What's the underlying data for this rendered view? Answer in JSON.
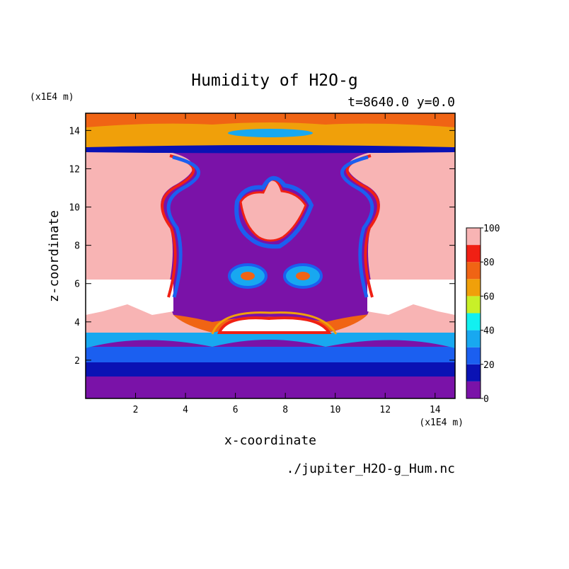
{
  "chart_data": {
    "type": "heatmap",
    "title": "Humidity of H2O-g",
    "subtitle": "t=8640.0 y=0.0",
    "xlabel": "x-coordinate",
    "ylabel": "z-coordinate",
    "x_unit": "(x1E4 m)",
    "y_unit": "(x1E4 m)",
    "xlim": [
      0,
      14.8
    ],
    "ylim": [
      0,
      14.9
    ],
    "x_ticks": [
      "2",
      "4",
      "6",
      "8",
      "10",
      "12",
      "14"
    ],
    "y_ticks": [
      "2",
      "4",
      "6",
      "8",
      "10",
      "12",
      "14"
    ],
    "colorbar": {
      "range": [
        0,
        100
      ],
      "step": 10,
      "tick_labels": [
        "0",
        "20",
        "40",
        "60",
        "80",
        "100"
      ],
      "colors": [
        "#7a12a8",
        "#0a12b4",
        "#1b5ff0",
        "#18a8f0",
        "#12f0f0",
        "#c8f028",
        "#f0a00a",
        "#f06414",
        "#f02014",
        "#f8b4b4"
      ]
    },
    "source_file": "./jupiter_H2O-g_Hum.nc"
  }
}
